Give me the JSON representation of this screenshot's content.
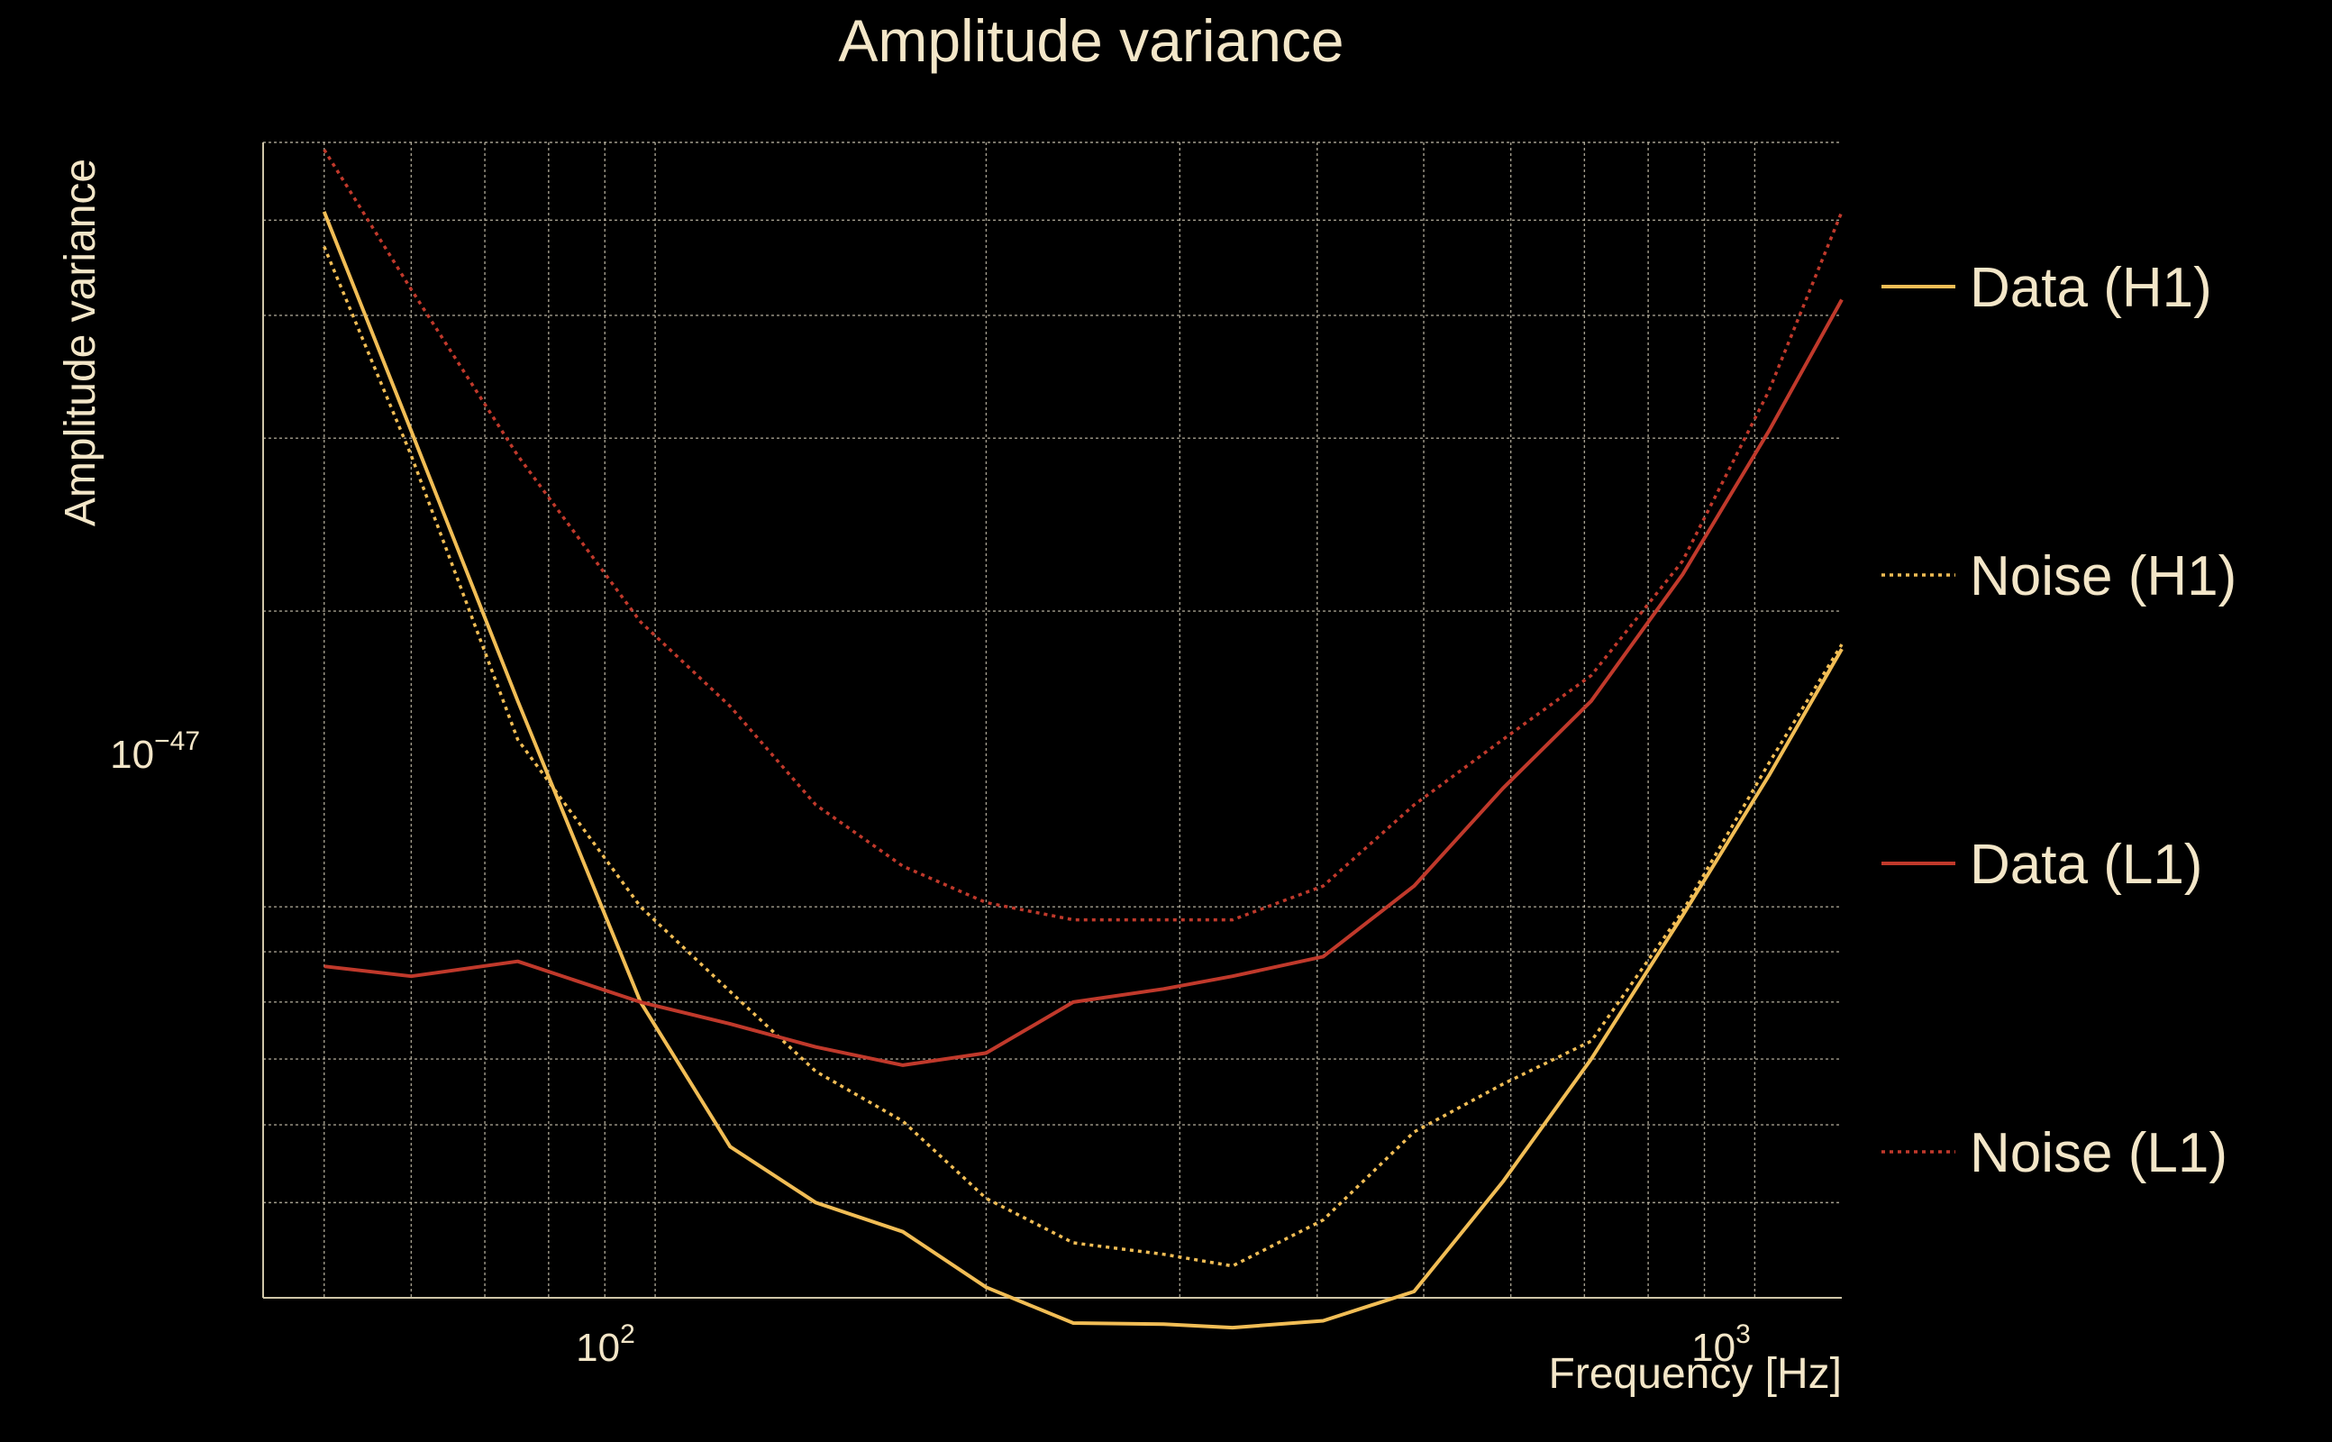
{
  "chart_data": {
    "type": "line",
    "title": "Amplitude variance",
    "xlabel": "Frequency [Hz]",
    "ylabel": "Amplitude variance",
    "xscale": "log",
    "yscale": "log",
    "xlim": [
      44,
      1200
    ],
    "ylim": [
      4e-48,
      6e-47
    ],
    "grid": true,
    "legend_position": "right",
    "x_ticks": [
      {
        "base": "10",
        "exp": "2",
        "value": 100
      },
      {
        "base": "10",
        "exp": "3",
        "value": 1000
      }
    ],
    "y_ticks": [
      {
        "base": "10",
        "exp": "−47",
        "value": 1e-47
      }
    ],
    "series": [
      {
        "name": "Data (H1)",
        "color": "#f1bd55",
        "dash": "solid",
        "x": [
          50,
          60,
          75,
          97,
          117,
          140,
          168,
          200,
          240,
          290,
          335,
          405,
          490,
          590,
          710,
          860,
          1030,
          1200
        ],
        "y": [
          5.1e-47,
          3.05e-47,
          1.62e-47,
          8e-48,
          5.7e-48,
          5e-48,
          4.67e-48,
          4.1e-48,
          3.77e-48,
          3.76e-48,
          3.73e-48,
          3.79e-48,
          4.06e-48,
          5.25e-48,
          7e-48,
          9.8e-48,
          1.36e-47,
          1.83e-47
        ]
      },
      {
        "name": "Noise (H1)",
        "color": "#f1bd55",
        "dash": "dotted",
        "x": [
          50,
          60,
          75,
          97,
          117,
          140,
          168,
          200,
          240,
          290,
          335,
          405,
          490,
          590,
          710,
          860,
          1030,
          1200
        ],
        "y": [
          4.7e-47,
          2.88e-47,
          1.48e-47,
          1e-47,
          8.2e-48,
          6.8e-48,
          6.05e-48,
          5.05e-48,
          4.55e-48,
          4.43e-48,
          4.31e-48,
          4.8e-48,
          5.9e-48,
          6.6e-48,
          7.3e-48,
          9.9e-48,
          1.4e-47,
          1.85e-47
        ]
      },
      {
        "name": "Data (L1)",
        "color": "#c0392b",
        "dash": "solid",
        "x": [
          50,
          60,
          75,
          97,
          117,
          140,
          168,
          200,
          240,
          290,
          335,
          405,
          490,
          590,
          710,
          860,
          1030,
          1200
        ],
        "y": [
          8.7e-48,
          8.5e-48,
          8.8e-48,
          8e-48,
          7.6e-48,
          7.2e-48,
          6.9e-48,
          7.1e-48,
          8e-48,
          8.25e-48,
          8.5e-48,
          8.9e-48,
          1.05e-47,
          1.32e-47,
          1.62e-47,
          2.18e-47,
          3.05e-47,
          4.15e-47
        ]
      },
      {
        "name": "Noise (L1)",
        "color": "#c0392b",
        "dash": "dotted",
        "x": [
          50,
          60,
          75,
          97,
          117,
          140,
          168,
          200,
          240,
          290,
          335,
          405,
          490,
          590,
          710,
          860,
          1030,
          1200
        ],
        "y": [
          5.9e-47,
          4.25e-47,
          2.88e-47,
          1.95e-47,
          1.6e-47,
          1.27e-47,
          1.1e-47,
          1.01e-47,
          9.7e-48,
          9.7e-48,
          9.7e-48,
          1.05e-47,
          1.27e-47,
          1.48e-47,
          1.72e-47,
          2.25e-47,
          3.35e-47,
          5.1e-47
        ]
      }
    ]
  }
}
